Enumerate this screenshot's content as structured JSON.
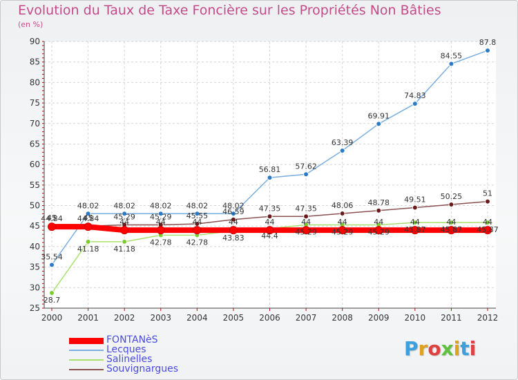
{
  "chart_data": {
    "type": "line",
    "title": "Evolution du Taux de Taxe Foncière sur les Propriétés Non Bâties",
    "unit_label": "(en %)",
    "categories": [
      "2000",
      "2001",
      "2002",
      "2003",
      "2004",
      "2005",
      "2006",
      "2007",
      "2008",
      "2009",
      "2010",
      "2011",
      "2012"
    ],
    "ylim": [
      25,
      90
    ],
    "yticks": [
      25,
      30,
      35,
      40,
      45,
      50,
      55,
      60,
      65,
      70,
      75,
      80,
      85,
      90
    ],
    "ytick_labels": [
      "25",
      "30",
      "35",
      "40",
      "45",
      "50",
      "55",
      "60",
      "65",
      "70",
      "75",
      "80",
      "85",
      "90"
    ],
    "grid": true,
    "legend_position": "bottom-left",
    "series": [
      {
        "name": "FONTANèS",
        "color": "#ff0000",
        "point_color": "#ff0000",
        "values": [
          44.84,
          44.84,
          44,
          44,
          44,
          44,
          44,
          44,
          44,
          44,
          44,
          44,
          44
        ],
        "labels": [
          "44.84",
          "44.84",
          "44",
          "44",
          "44",
          "44",
          "44",
          "44",
          "44",
          "44",
          "44",
          "44",
          "44"
        ]
      },
      {
        "name": "Lecques",
        "color": "#7aaee0",
        "point_color": "#2a7ac8",
        "values": [
          35.54,
          48.02,
          48.02,
          48.02,
          48.02,
          48.02,
          56.81,
          57.62,
          63.39,
          69.91,
          74.83,
          84.55,
          87.8
        ],
        "labels": [
          "35.54",
          "48.02",
          "48.02",
          "48.02",
          "48.02",
          "48.02",
          "56.81",
          "57.62",
          "63.39",
          "69.91",
          "74.83",
          "84.55",
          "87.8"
        ]
      },
      {
        "name": "Salinelles",
        "color": "#a8e070",
        "point_color": "#7acc30",
        "values": [
          28.7,
          41.18,
          41.18,
          42.78,
          42.78,
          43.83,
          44.4,
          45.29,
          45.29,
          45.29,
          45.87,
          45.87,
          45.87
        ],
        "labels": [
          "28.7",
          "41.18",
          "41.18",
          "42.78",
          "42.78",
          "43.83",
          "44.4",
          "45.29",
          "45.29",
          "45.29",
          "45.87",
          "45.87",
          "45.87"
        ]
      },
      {
        "name": "Souvignargues",
        "color": "#8a5050",
        "point_color": "#6a1a1a",
        "values": [
          45,
          45,
          45.29,
          45.29,
          45.55,
          46.59,
          47.35,
          47.35,
          48.06,
          48.78,
          49.51,
          50.25,
          51
        ],
        "labels": [
          "45",
          "45",
          "45.29",
          "45.29",
          "45.55",
          "46.59",
          "47.35",
          "47.35",
          "48.06",
          "48.78",
          "49.51",
          "50.25",
          "51"
        ]
      }
    ]
  },
  "logo": {
    "text": [
      "P",
      "r",
      "o",
      "x",
      "i",
      "t",
      "i"
    ],
    "colors": [
      "#3aa0e0",
      "#e0a020",
      "#e04040",
      "#60c040",
      "#e0a020",
      "#3aa0e0",
      "#e04040"
    ]
  }
}
